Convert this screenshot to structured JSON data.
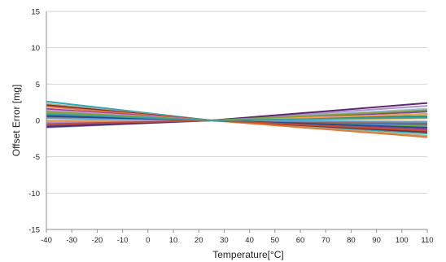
{
  "chart_data": {
    "type": "line",
    "title": "",
    "xlabel": "Temperature[°C]",
    "ylabel": "Offset  Error [mg]",
    "xlim": [
      -40,
      110
    ],
    "ylim": [
      -15,
      15
    ],
    "xticks": [
      -40,
      -30,
      -20,
      -10,
      0,
      10,
      20,
      30,
      40,
      50,
      60,
      70,
      80,
      90,
      100,
      110
    ],
    "yticks": [
      -15,
      -10,
      -5,
      0,
      5,
      10,
      15
    ],
    "grid": "horizontal",
    "legend": "none",
    "x": [
      -40,
      25,
      110
    ],
    "series": [
      {
        "values": [
          2.6,
          0,
          -1.8
        ],
        "color": "#2aa7b8"
      },
      {
        "values": [
          2.3,
          0,
          -2.1
        ],
        "color": "#b5a97a"
      },
      {
        "values": [
          2.1,
          0,
          -1.6
        ],
        "color": "#7a2a3a"
      },
      {
        "values": [
          1.9,
          0,
          -2.3
        ],
        "color": "#e07b39"
      },
      {
        "values": [
          1.6,
          0,
          -1.2
        ],
        "color": "#a33b8e"
      },
      {
        "values": [
          1.4,
          0,
          -1.0
        ],
        "color": "#c6a0d8"
      },
      {
        "values": [
          1.1,
          0,
          -0.8
        ],
        "color": "#7fb24a"
      },
      {
        "values": [
          0.8,
          0,
          -0.6
        ],
        "color": "#4a78c8"
      },
      {
        "values": [
          0.5,
          0,
          -0.4
        ],
        "color": "#9e5f3a"
      },
      {
        "values": [
          0.3,
          0,
          -0.2
        ],
        "color": "#5aa0d8"
      },
      {
        "values": [
          -0.2,
          0,
          0.3
        ],
        "color": "#e8a33a"
      },
      {
        "values": [
          -0.4,
          0,
          0.6
        ],
        "color": "#3a8a5a"
      },
      {
        "values": [
          -0.6,
          0,
          0.9
        ],
        "color": "#d64a4a"
      },
      {
        "values": [
          -0.8,
          0,
          1.2
        ],
        "color": "#6a4a9a"
      },
      {
        "values": [
          -1.0,
          0,
          1.6
        ],
        "color": "#9ac0e0"
      },
      {
        "values": [
          0.0,
          0,
          0.9
        ],
        "color": "#f0a050"
      },
      {
        "values": [
          -0.3,
          0,
          2.0
        ],
        "color": "#b090d0"
      },
      {
        "values": [
          -0.9,
          0,
          2.4
        ],
        "color": "#5a2a6a"
      },
      {
        "values": [
          0.6,
          0,
          -1.0
        ],
        "color": "#2a4a8a"
      },
      {
        "values": [
          1.2,
          0,
          1.4
        ],
        "color": "#8aa040"
      },
      {
        "values": [
          -0.5,
          0,
          -1.4
        ],
        "color": "#c05030"
      },
      {
        "values": [
          0.9,
          0,
          0.4
        ],
        "color": "#3aa0a0"
      }
    ]
  }
}
